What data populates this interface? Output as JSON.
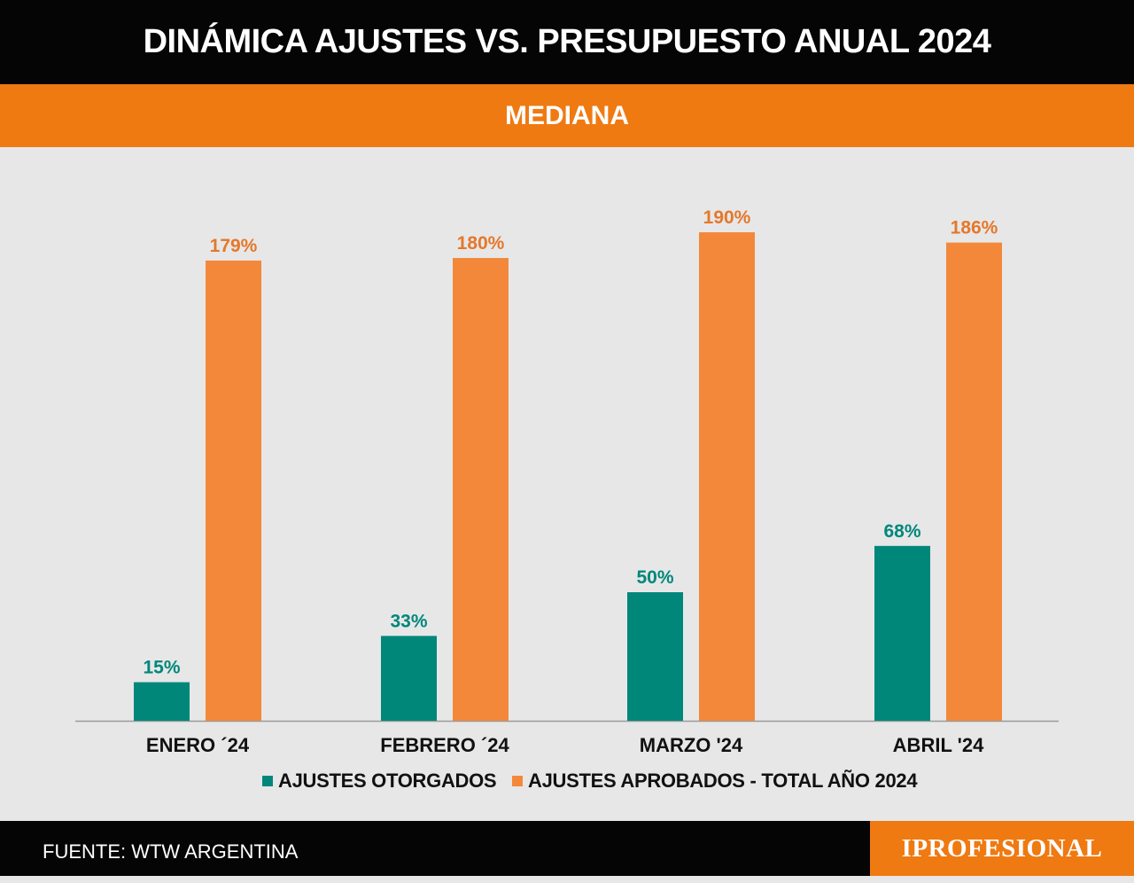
{
  "header": {
    "title": "DINÁMICA AJUSTES VS. PRESUPUESTO ANUAL 2024",
    "subtitle": "MEDIANA"
  },
  "colors": {
    "otorgados": "#00877a",
    "aprobados": "#f4883a",
    "otorgados_label": "#00877a",
    "aprobados_label": "#e4782a",
    "header_bg": "#050505",
    "subtitle_bg": "#ef7a12",
    "background": "#e7e7e8"
  },
  "chart_data": {
    "type": "bar",
    "title": "DINÁMICA AJUSTES VS. PRESUPUESTO ANUAL 2024",
    "subtitle": "MEDIANA",
    "categories": [
      "ENERO ´24",
      "FEBRERO ´24",
      "MARZO '24",
      "ABRIL '24"
    ],
    "series": [
      {
        "name": "AJUSTES OTORGADOS",
        "values": [
          15,
          33,
          50,
          68
        ],
        "labels": [
          "15%",
          "33%",
          "50%",
          "68%"
        ]
      },
      {
        "name": "AJUSTES APROBADOS - TOTAL AÑO 2024",
        "values": [
          179,
          180,
          190,
          186
        ],
        "labels": [
          "179%",
          "180%",
          "190%",
          "186%"
        ]
      }
    ],
    "unit": "%",
    "ylim": [
      0,
      200
    ],
    "grid": false,
    "legend_position": "bottom"
  },
  "legend": {
    "items": [
      "AJUSTES OTORGADOS",
      "AJUSTES APROBADOS - TOTAL AÑO 2024"
    ]
  },
  "footer": {
    "source": "FUENTE: WTW ARGENTINA",
    "logo": "IPROFESIONAL"
  }
}
